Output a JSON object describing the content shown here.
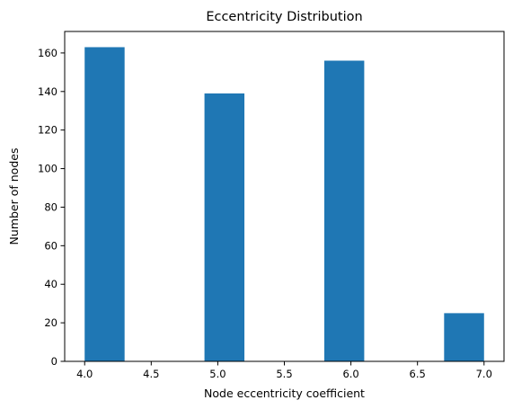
{
  "chart_data": {
    "type": "bar",
    "title": "Eccentricity Distribution",
    "xlabel": "Node eccentricity coefficient",
    "ylabel": "Number of nodes",
    "xlim": [
      3.85,
      7.15
    ],
    "ylim": [
      0,
      171.15
    ],
    "x_ticks": [
      "4.0",
      "4.5",
      "5.0",
      "5.5",
      "6.0",
      "6.5",
      "7.0"
    ],
    "y_ticks": [
      "0",
      "20",
      "40",
      "60",
      "80",
      "100",
      "120",
      "140",
      "160"
    ],
    "bins": [
      {
        "start": 4.0,
        "end": 4.3,
        "value": 163
      },
      {
        "start": 4.3,
        "end": 4.6,
        "value": 0
      },
      {
        "start": 4.6,
        "end": 4.9,
        "value": 0
      },
      {
        "start": 4.9,
        "end": 5.2,
        "value": 139
      },
      {
        "start": 5.2,
        "end": 5.5,
        "value": 0
      },
      {
        "start": 5.5,
        "end": 5.8,
        "value": 0
      },
      {
        "start": 5.8,
        "end": 6.1,
        "value": 156
      },
      {
        "start": 6.1,
        "end": 6.4,
        "value": 0
      },
      {
        "start": 6.4,
        "end": 6.7,
        "value": 0
      },
      {
        "start": 6.7,
        "end": 7.0,
        "value": 25
      }
    ],
    "bar_color": "#1f77b4",
    "grid": false,
    "legend": false
  }
}
